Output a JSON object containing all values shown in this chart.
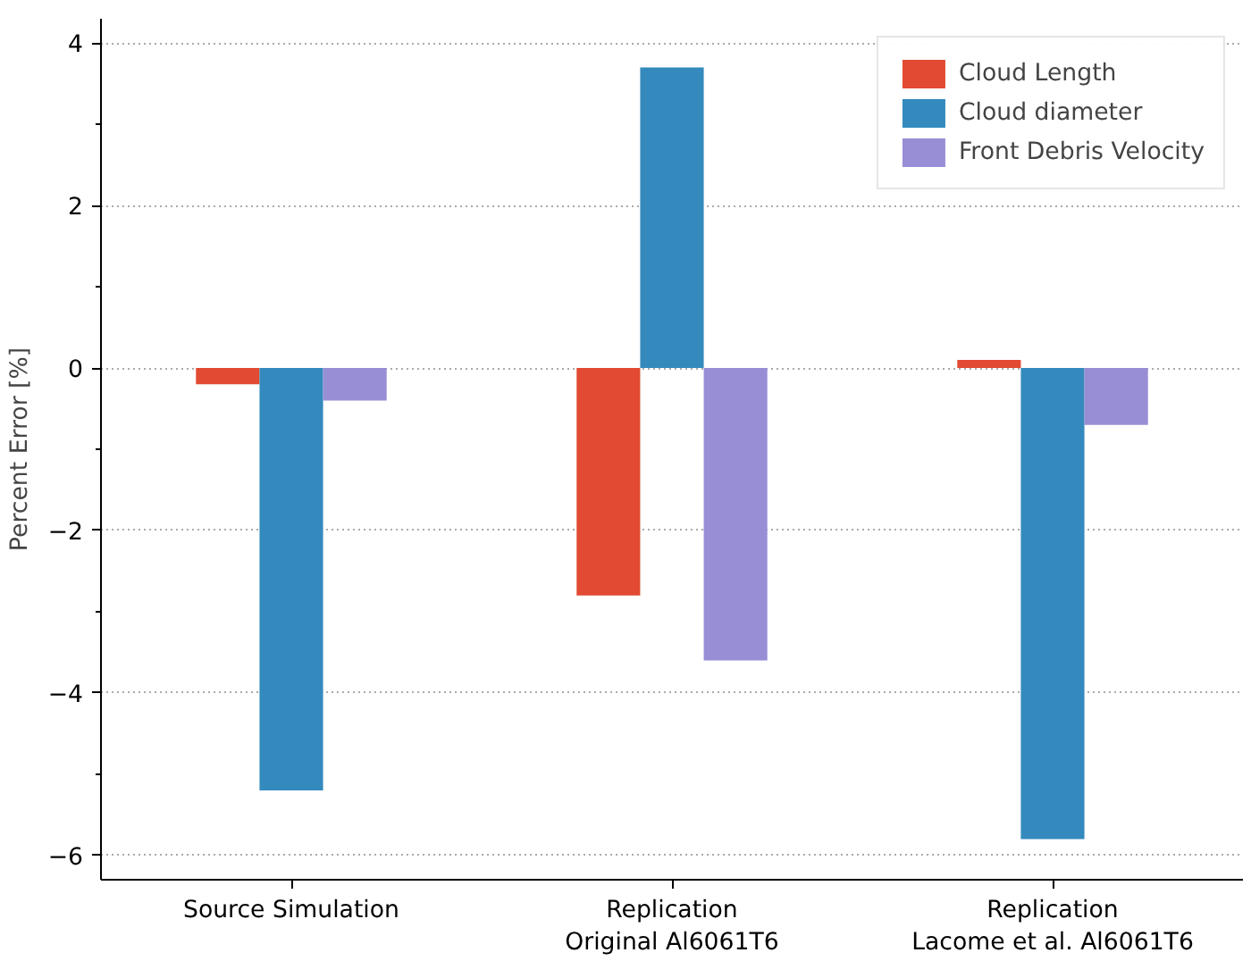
{
  "chart_data": {
    "type": "bar",
    "ylabel": "Percent Error [%]",
    "categories": [
      "Source Simulation",
      "Replication\nOriginal Al6061T6",
      "Replication\nLacome et al. Al6061T6"
    ],
    "series": [
      {
        "name": "Cloud Length",
        "color": "#e24a33",
        "values": [
          -0.2,
          -2.8,
          0.1
        ]
      },
      {
        "name": "Cloud diameter",
        "color": "#348abd",
        "values": [
          -5.2,
          3.7,
          -5.8
        ]
      },
      {
        "name": "Front Debris Velocity",
        "color": "#988ed5",
        "values": [
          -0.4,
          -3.6,
          -0.7
        ]
      }
    ],
    "ylim": [
      -6.3,
      4.3
    ],
    "yticks": [
      -6,
      -4,
      -2,
      0,
      2,
      4
    ],
    "grid": "y",
    "legend": "top right"
  }
}
